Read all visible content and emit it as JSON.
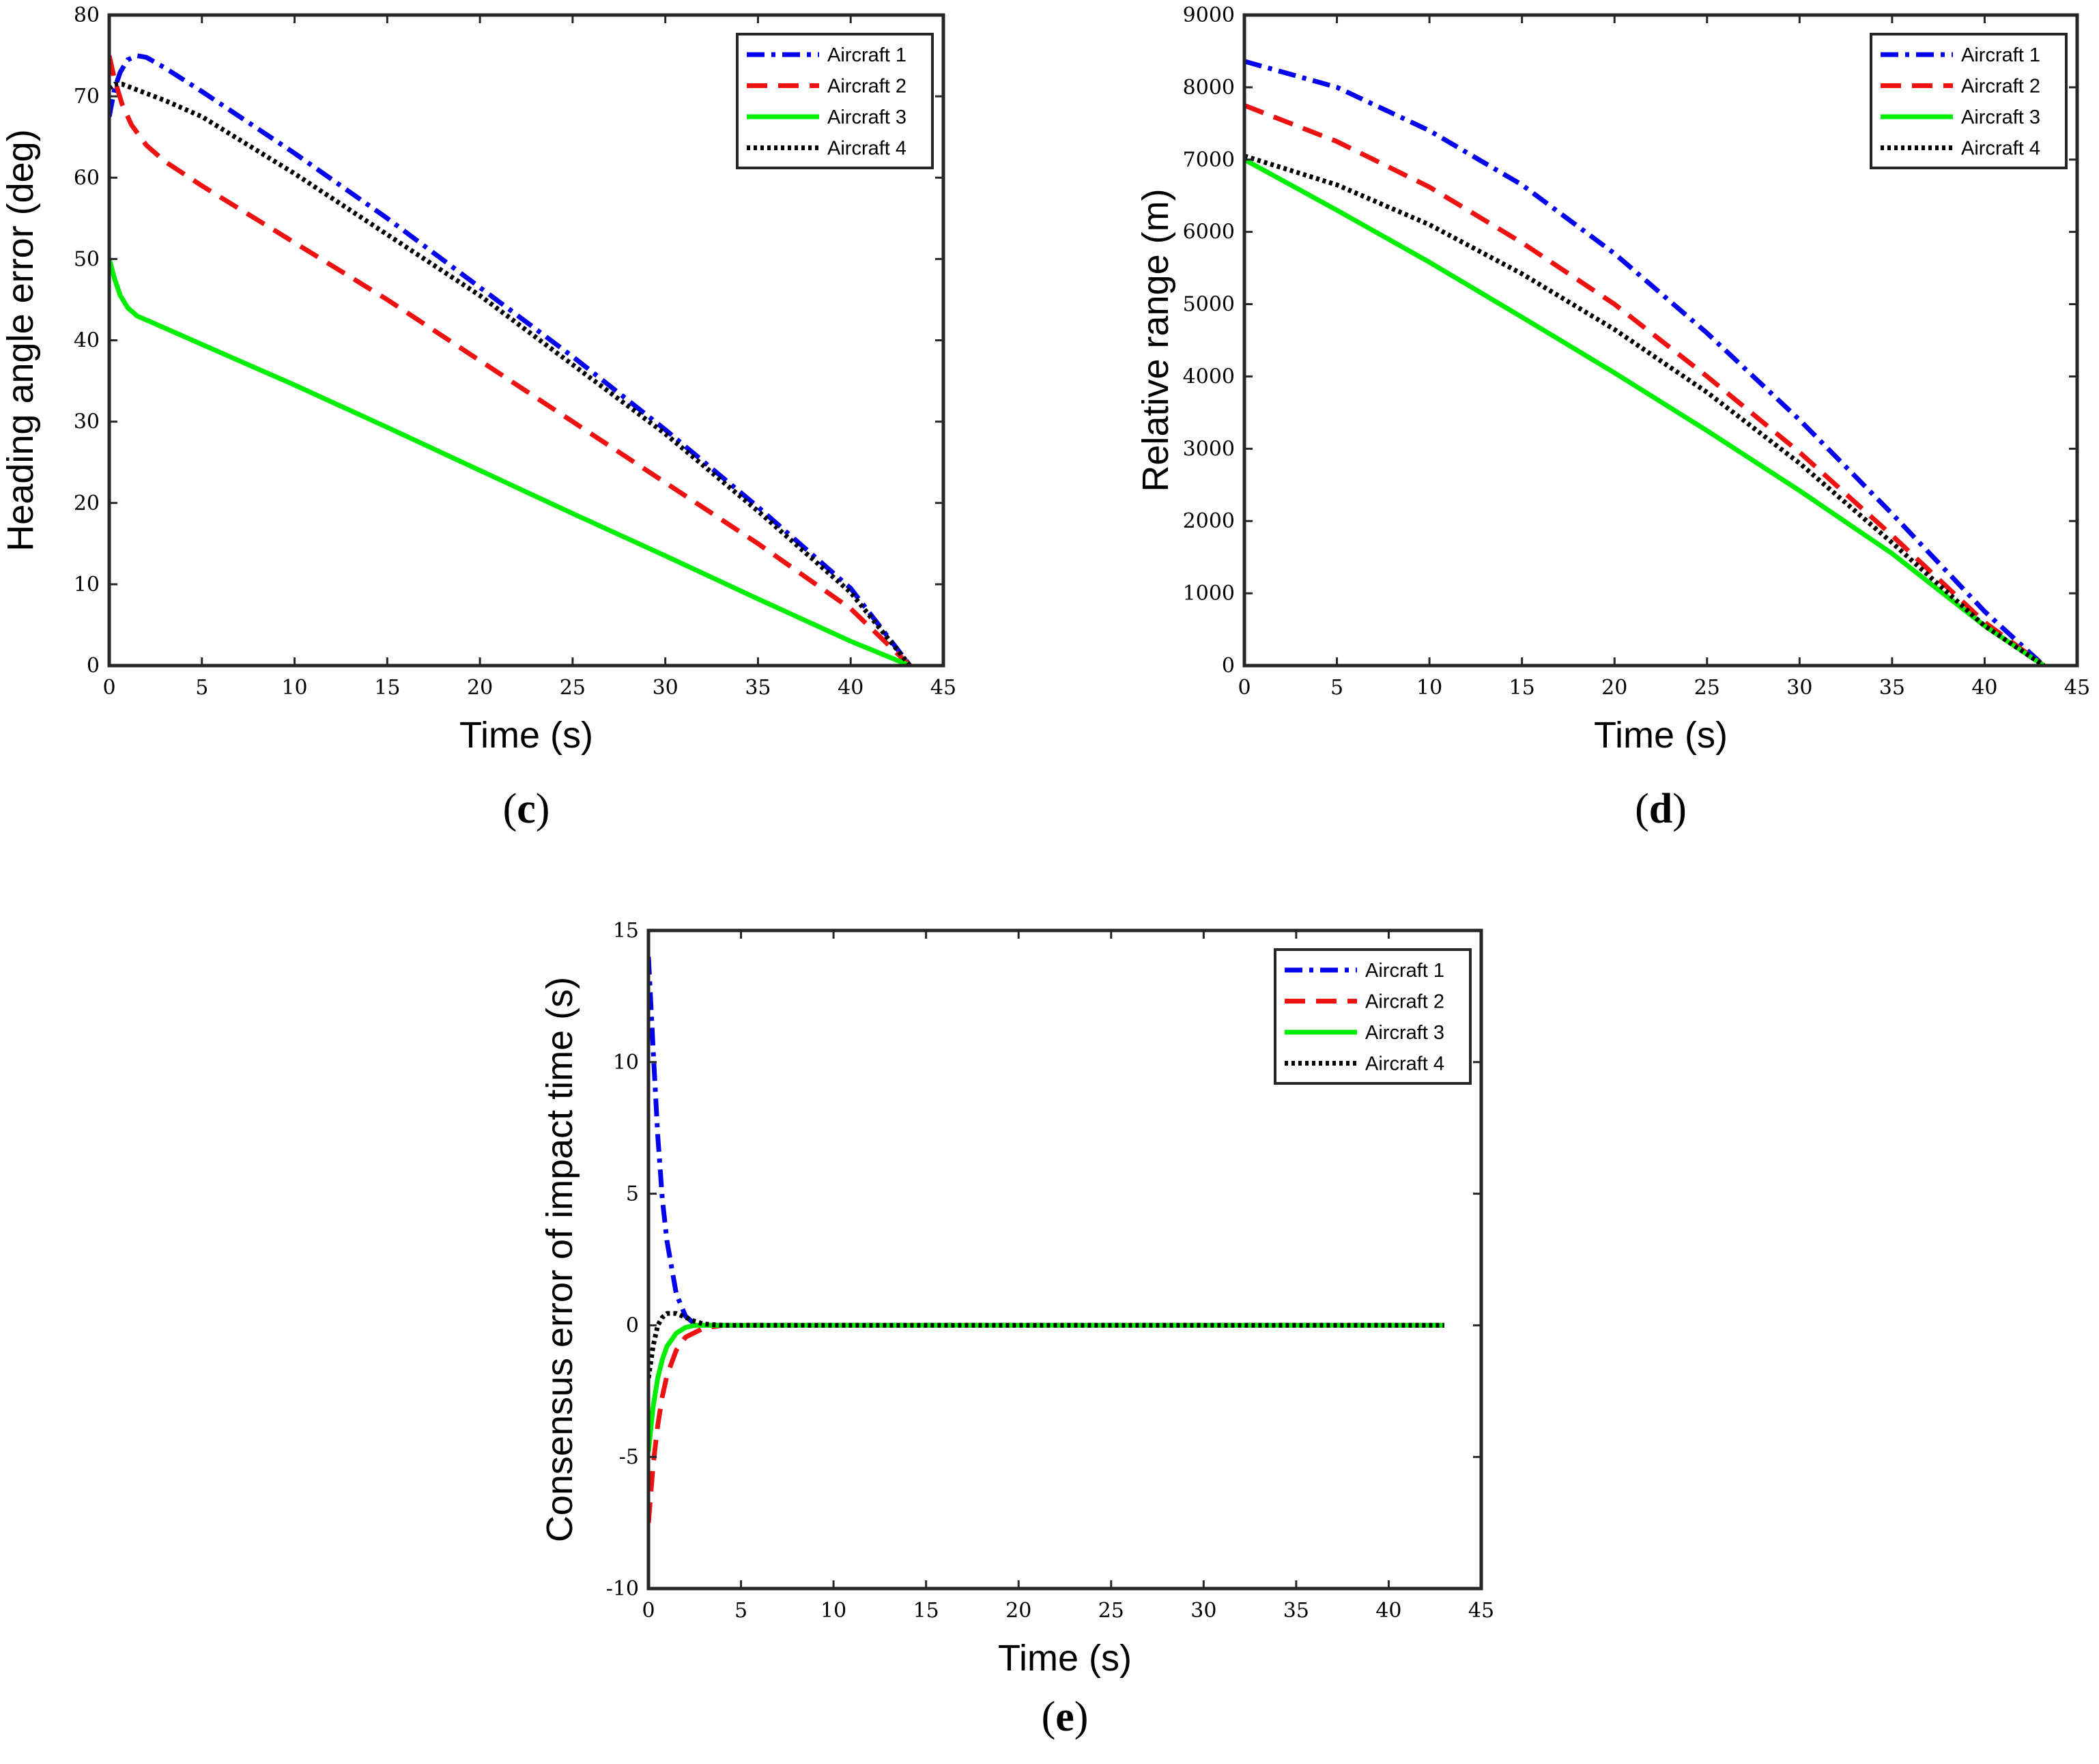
{
  "series_styles": [
    {
      "name": "Aircraft 1",
      "color": "#0000ee",
      "dash": "dashdot"
    },
    {
      "name": "Aircraft 2",
      "color": "#ee1111",
      "dash": "dashed"
    },
    {
      "name": "Aircraft 3",
      "color": "#00ee00",
      "dash": "solid"
    },
    {
      "name": "Aircraft 4",
      "color": "#000000",
      "dash": "dotted"
    }
  ],
  "chart_data": [
    {
      "id": "c",
      "panel_label": "c",
      "type": "line",
      "xlabel": "Time (s)",
      "ylabel": "Heading angle error (deg)",
      "xlim": [
        0,
        45
      ],
      "ylim": [
        0,
        80
      ],
      "xticks": [
        0,
        5,
        10,
        15,
        20,
        25,
        30,
        35,
        40,
        45
      ],
      "yticks": [
        0,
        10,
        20,
        30,
        40,
        50,
        60,
        70,
        80
      ],
      "legend_position": "top-right",
      "series": [
        {
          "name": "Aircraft 1",
          "x": [
            0,
            0.3,
            0.6,
            1.0,
            1.5,
            2,
            3,
            5,
            10,
            15,
            20,
            25,
            30,
            35,
            40,
            43.2
          ],
          "y": [
            67.5,
            71,
            73,
            74.5,
            75,
            74.8,
            73.5,
            70.6,
            63,
            55,
            46.5,
            38,
            29,
            19.5,
            9.5,
            0
          ]
        },
        {
          "name": "Aircraft 2",
          "x": [
            0,
            0.3,
            0.7,
            1.2,
            2,
            3,
            5,
            10,
            15,
            20,
            25,
            30,
            35,
            40,
            43.2
          ],
          "y": [
            75,
            72,
            69,
            66.5,
            64,
            62,
            59,
            52,
            45,
            37.5,
            30,
            22.5,
            15,
            7,
            0
          ]
        },
        {
          "name": "Aircraft 3",
          "x": [
            0,
            0.3,
            0.6,
            1.0,
            1.5,
            2,
            3,
            5,
            10,
            15,
            20,
            25,
            30,
            35,
            40,
            43.2
          ],
          "y": [
            50,
            47.5,
            45.5,
            44,
            43,
            42.5,
            41.5,
            39.5,
            34.5,
            29.3,
            24,
            18.7,
            13.5,
            8.2,
            3,
            0
          ]
        },
        {
          "name": "Aircraft 4",
          "x": [
            0,
            0.3,
            0.7,
            1.5,
            3,
            5,
            10,
            15,
            20,
            25,
            30,
            35,
            40,
            43.2
          ],
          "y": [
            71,
            71.5,
            71.5,
            70.8,
            69.5,
            67.5,
            60.5,
            53,
            45.5,
            37,
            28.5,
            19,
            9,
            0
          ]
        }
      ]
    },
    {
      "id": "d",
      "panel_label": "d",
      "type": "line",
      "xlabel": "Time (s)",
      "ylabel": "Relative range (m)",
      "xlim": [
        0,
        45
      ],
      "ylim": [
        0,
        9000
      ],
      "xticks": [
        0,
        5,
        10,
        15,
        20,
        25,
        30,
        35,
        40,
        45
      ],
      "yticks": [
        0,
        1000,
        2000,
        3000,
        4000,
        5000,
        6000,
        7000,
        8000,
        9000
      ],
      "legend_position": "top-right",
      "series": [
        {
          "name": "Aircraft 1",
          "x": [
            0,
            5,
            10,
            15,
            20,
            25,
            30,
            35,
            40,
            43.2
          ],
          "y": [
            8360,
            8000,
            7400,
            6650,
            5700,
            4600,
            3400,
            2100,
            750,
            0
          ]
        },
        {
          "name": "Aircraft 2",
          "x": [
            0,
            5,
            10,
            15,
            20,
            25,
            30,
            35,
            40,
            43.2
          ],
          "y": [
            7750,
            7250,
            6620,
            5850,
            5000,
            4000,
            2950,
            1800,
            600,
            0
          ]
        },
        {
          "name": "Aircraft 3",
          "x": [
            0,
            5,
            10,
            15,
            20,
            25,
            30,
            35,
            40,
            43.2
          ],
          "y": [
            7000,
            6300,
            5580,
            4820,
            4050,
            3250,
            2420,
            1550,
            550,
            0
          ]
        },
        {
          "name": "Aircraft 4",
          "x": [
            0,
            5,
            10,
            15,
            20,
            25,
            30,
            35,
            40,
            43.2
          ],
          "y": [
            7050,
            6650,
            6100,
            5420,
            4650,
            3780,
            2800,
            1700,
            550,
            0
          ]
        }
      ]
    },
    {
      "id": "e",
      "panel_label": "e",
      "type": "line",
      "xlabel": "Time (s)",
      "ylabel": "Consensus error of impact time (s)",
      "xlim": [
        0,
        45
      ],
      "ylim": [
        -10,
        15
      ],
      "xticks": [
        0,
        5,
        10,
        15,
        20,
        25,
        30,
        35,
        40,
        45
      ],
      "yticks": [
        -10,
        -5,
        0,
        5,
        10,
        15
      ],
      "legend_position": "top-right",
      "series": [
        {
          "name": "Aircraft 1",
          "x": [
            0,
            0.25,
            0.5,
            0.75,
            1.0,
            1.5,
            2,
            2.5,
            3,
            4,
            5,
            10,
            20,
            30,
            43
          ],
          "y": [
            14,
            10.5,
            7.2,
            4.8,
            3.2,
            1.2,
            0.35,
            0.05,
            0,
            0,
            0,
            0,
            0,
            0,
            0
          ]
        },
        {
          "name": "Aircraft 2",
          "x": [
            0,
            0.25,
            0.5,
            0.75,
            1,
            1.5,
            2,
            3,
            4,
            5,
            10,
            20,
            30,
            43
          ],
          "y": [
            -7.5,
            -5.3,
            -3.8,
            -2.7,
            -1.9,
            -0.95,
            -0.45,
            -0.1,
            0,
            0,
            0,
            0,
            0,
            0
          ]
        },
        {
          "name": "Aircraft 3",
          "x": [
            0,
            0.25,
            0.5,
            0.75,
            1,
            1.5,
            2,
            2.5,
            3,
            4,
            5,
            10,
            20,
            30,
            43
          ],
          "y": [
            -4.8,
            -3.1,
            -2.0,
            -1.3,
            -0.8,
            -0.3,
            -0.08,
            0,
            0,
            0,
            0,
            0,
            0,
            0,
            0
          ]
        },
        {
          "name": "Aircraft 4",
          "x": [
            0,
            0.25,
            0.5,
            0.75,
            1,
            1.5,
            2,
            2.5,
            3,
            4,
            5,
            10,
            20,
            30,
            43
          ],
          "y": [
            -2,
            -0.8,
            0,
            0.3,
            0.45,
            0.45,
            0.3,
            0.15,
            0.05,
            0,
            0,
            0,
            0,
            0,
            0
          ]
        }
      ]
    }
  ]
}
